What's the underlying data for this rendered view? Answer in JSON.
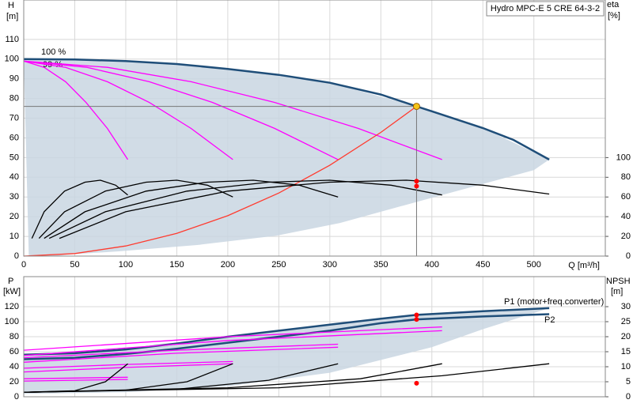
{
  "chart_data": [
    {
      "type": "line",
      "title": "Hydro MPC-E 5 CRE 64-3-2",
      "y_label": [
        "H",
        "[m]"
      ],
      "y2_label": [
        "eta",
        "[%]"
      ],
      "x_label": "Q [m³/h]",
      "xlim": [
        0,
        570
      ],
      "xticks": [
        0,
        50,
        100,
        150,
        200,
        250,
        300,
        350,
        400,
        450,
        500
      ],
      "ylim": [
        0,
        130
      ],
      "yticks": [
        0,
        10,
        20,
        30,
        40,
        50,
        60,
        70,
        80,
        90,
        100,
        110
      ],
      "y2lim": [
        0,
        260
      ],
      "y2ticks": [
        0,
        20,
        40,
        60,
        80,
        100
      ],
      "grid": true,
      "series": [
        {
          "style": "area",
          "color": "#c9d6e2",
          "x": [
            5,
            0,
            100,
            200,
            300,
            385,
            450,
            515,
            500,
            400,
            310,
            248,
            170,
            93,
            50,
            30
          ],
          "values": [
            0,
            100,
            99,
            95,
            88,
            76,
            65,
            49,
            43.6,
            29.6,
            16.8,
            10.4,
            5.6,
            2.4,
            1,
            0
          ]
        },
        {
          "name": "100 %",
          "color": "#1f4e79",
          "x": [
            0,
            50,
            100,
            150,
            200,
            250,
            300,
            350,
            385,
            400,
            450,
            480,
            515
          ],
          "values": [
            100,
            99.8,
            99,
            97.5,
            95,
            92,
            88,
            82,
            76,
            73.5,
            65,
            59,
            49
          ]
        },
        {
          "name": "99 %",
          "color": "#ff00ff",
          "x": [
            0,
            20,
            41,
            61,
            82,
            102
          ],
          "values": [
            99,
            95.8,
            88.5,
            78,
            64.8,
            49
          ]
        },
        {
          "color": "#ff00ff",
          "x": [
            0,
            41,
            82,
            123,
            164,
            205
          ],
          "values": [
            99,
            95.8,
            88.5,
            78,
            64.8,
            49
          ]
        },
        {
          "color": "#ff00ff",
          "x": [
            0,
            62,
            123,
            185,
            246,
            308
          ],
          "values": [
            99,
            95.8,
            88.5,
            78,
            64.8,
            49
          ]
        },
        {
          "color": "#ff00ff",
          "x": [
            0,
            82,
            164,
            246,
            328,
            410
          ],
          "values": [
            99,
            95.8,
            88.5,
            78,
            64.8,
            49
          ]
        },
        {
          "color": "#ff3b2f",
          "x": [
            0,
            50,
            100,
            150,
            200,
            250,
            300,
            350,
            385
          ],
          "values": [
            0,
            1.28,
            5.13,
            11.5,
            20.5,
            32,
            46.1,
            62.8,
            76
          ]
        },
        {
          "color": "#000000",
          "axis": "y2",
          "x": [
            8,
            20,
            40,
            60,
            75,
            90,
            102
          ],
          "values": [
            18,
            45,
            66,
            75,
            77,
            72,
            62
          ]
        },
        {
          "color": "#000000",
          "axis": "y2",
          "x": [
            15,
            40,
            80,
            120,
            150,
            180,
            205
          ],
          "values": [
            18,
            45,
            66,
            75,
            77,
            72,
            60
          ]
        },
        {
          "color": "#000000",
          "axis": "y2",
          "x": [
            20,
            60,
            120,
            180,
            225,
            270,
            308
          ],
          "values": [
            18,
            45,
            66,
            75,
            77,
            72,
            60
          ]
        },
        {
          "color": "#000000",
          "axis": "y2",
          "x": [
            25,
            80,
            160,
            240,
            300,
            360,
            410
          ],
          "values": [
            18,
            45,
            66,
            75,
            77,
            72,
            62
          ]
        },
        {
          "color": "#000000",
          "axis": "y2",
          "x": [
            35,
            100,
            200,
            300,
            375,
            450,
            515
          ],
          "values": [
            18,
            45,
            66,
            75,
            77,
            72,
            63
          ]
        }
      ],
      "operating_point": {
        "x": 385,
        "y": 76,
        "color": "#f5c518"
      },
      "markers": [
        {
          "x": 385,
          "y": 76,
          "axis": "y2",
          "color": "#ff0000"
        },
        {
          "x": 385,
          "y": 71,
          "axis": "y2",
          "color": "#ff0000"
        }
      ]
    },
    {
      "type": "line",
      "y_label": [
        "P",
        "[kW]"
      ],
      "y2_label": [
        "NPSH",
        "[m]"
      ],
      "xlim": [
        0,
        570
      ],
      "ylim": [
        0,
        160
      ],
      "yticks": [
        0,
        20,
        40,
        60,
        80,
        100,
        120
      ],
      "y2lim": [
        0,
        40
      ],
      "y2ticks": [
        0,
        5,
        10,
        15,
        20,
        25,
        30
      ],
      "grid": true,
      "series": [
        {
          "style": "area",
          "color": "#c9d6e2",
          "x": [
            0,
            100,
            200,
            300,
            385,
            450,
            515,
            450,
            400,
            300,
            200,
            100,
            0
          ],
          "values": [
            56,
            63,
            80,
            96,
            109,
            114,
            118,
            90,
            66,
            32,
            14,
            6,
            4
          ]
        },
        {
          "name": "P1 (motor+freq.converter)",
          "color": "#1f4e79",
          "x": [
            0,
            50,
            100,
            150,
            200,
            250,
            300,
            350,
            385,
            450,
            515
          ],
          "values": [
            56,
            58,
            63,
            71,
            80,
            88,
            96,
            104,
            109,
            114,
            118
          ]
        },
        {
          "name": "P2",
          "color": "#1f4e79",
          "x": [
            0,
            50,
            100,
            150,
            200,
            250,
            300,
            350,
            385,
            450,
            515
          ],
          "values": [
            50,
            52,
            57,
            64,
            72,
            80,
            88,
            98,
            103,
            107,
            110
          ]
        },
        {
          "color": "#ff00ff",
          "x": [
            0,
            50,
            102
          ],
          "values": [
            24,
            25,
            26
          ]
        },
        {
          "color": "#ff00ff",
          "x": [
            0,
            50,
            102
          ],
          "values": [
            21,
            22,
            23
          ]
        },
        {
          "color": "#ff00ff",
          "x": [
            0,
            100,
            205
          ],
          "values": [
            38,
            43,
            47
          ]
        },
        {
          "color": "#ff00ff",
          "x": [
            0,
            100,
            205
          ],
          "values": [
            33,
            39,
            44
          ]
        },
        {
          "color": "#ff00ff",
          "x": [
            0,
            150,
            308
          ],
          "values": [
            52,
            62,
            70
          ]
        },
        {
          "color": "#ff00ff",
          "x": [
            0,
            150,
            308
          ],
          "values": [
            46,
            58,
            66
          ]
        },
        {
          "color": "#ff00ff",
          "x": [
            0,
            200,
            410
          ],
          "values": [
            62,
            80,
            93
          ]
        },
        {
          "color": "#ff00ff",
          "x": [
            0,
            200,
            410
          ],
          "values": [
            55,
            75,
            88
          ]
        },
        {
          "color": "#000000",
          "axis": "y2",
          "x": [
            0,
            50,
            80,
            102
          ],
          "values": [
            1.5,
            2,
            5,
            11
          ]
        },
        {
          "color": "#000000",
          "axis": "y2",
          "x": [
            0,
            100,
            160,
            205
          ],
          "values": [
            1.5,
            2.2,
            5,
            11
          ]
        },
        {
          "color": "#000000",
          "axis": "y2",
          "x": [
            0,
            150,
            240,
            308
          ],
          "values": [
            1.5,
            2.5,
            5.5,
            11
          ]
        },
        {
          "color": "#000000",
          "axis": "y2",
          "x": [
            0,
            200,
            330,
            410
          ],
          "values": [
            1.5,
            3,
            6,
            11
          ]
        },
        {
          "color": "#000000",
          "axis": "y2",
          "x": [
            0,
            250,
            410,
            515
          ],
          "values": [
            1.5,
            3,
            7,
            11
          ]
        }
      ],
      "markers": [
        {
          "x": 385,
          "y": 109,
          "color": "#ff0000"
        },
        {
          "x": 385,
          "y": 103,
          "color": "#ff0000"
        },
        {
          "x": 385,
          "y": 4.5,
          "axis": "y2",
          "color": "#ff0000"
        }
      ]
    }
  ]
}
